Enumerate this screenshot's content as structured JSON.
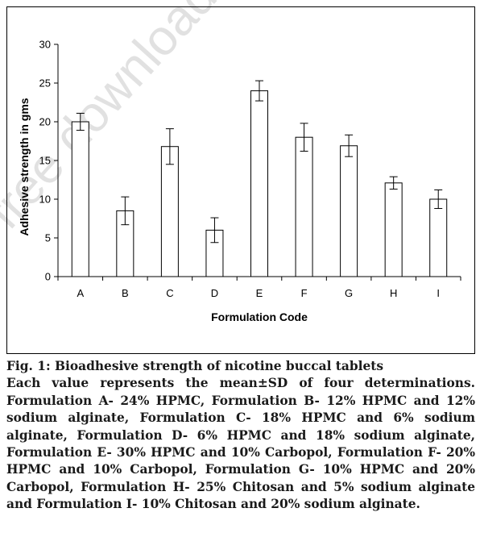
{
  "watermark": "free download from",
  "chart_data": {
    "type": "bar",
    "categories": [
      "A",
      "B",
      "C",
      "D",
      "E",
      "F",
      "G",
      "H",
      "I"
    ],
    "values": [
      20,
      8.5,
      16.8,
      6,
      24,
      18,
      16.9,
      12.1,
      10
    ],
    "errors": [
      1.1,
      1.8,
      2.3,
      1.6,
      1.3,
      1.8,
      1.4,
      0.8,
      1.2
    ],
    "xlabel": "Formulation Code",
    "ylabel": "Adhesive strength in gms",
    "ylim": [
      0,
      30
    ],
    "yticks": [
      0,
      5,
      10,
      15,
      20,
      25,
      30
    ],
    "grid": false,
    "bar_fill": "#ffffff",
    "bar_stroke": "#000000"
  },
  "caption": {
    "title": "Fig. 1: Bioadhesive strength of nicotine buccal tablets",
    "body": "Each value represents the mean±SD of four determinations. Formulation A- 24% HPMC, Formulation B- 12% HPMC and 12% sodium alginate, Formulation C- 18% HPMC and 6% sodium alginate, Formulation D- 6% HPMC and 18% sodium alginate, Formulation E- 30% HPMC and 10% Carbopol, Formulation F- 20% HPMC and 10% Carbopol, Formulation G- 10% HPMC and 20% Carbopol, Formulation H- 25% Chitosan and 5% sodium alginate and Formulation I- 10% Chitosan and 20% sodium alginate."
  }
}
